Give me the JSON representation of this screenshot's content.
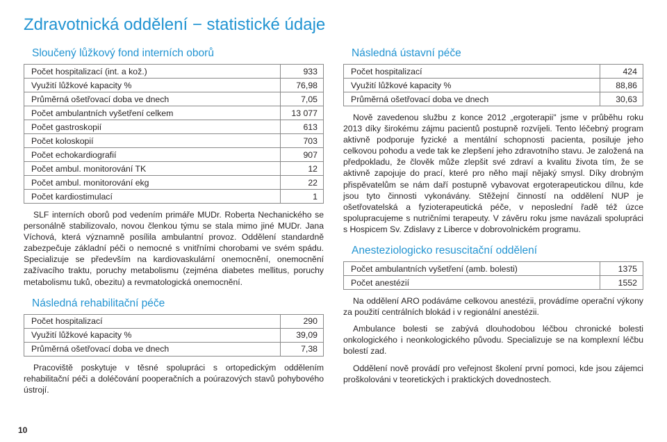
{
  "colors": {
    "accent": "#2294d2",
    "text": "#231f20",
    "border": "#888888",
    "background": "#ffffff"
  },
  "pageTitle": "Zdravotnická oddělení − statistické údaje",
  "pageNumber": "10",
  "left": {
    "section1": {
      "title": "Sloučený lůžkový fond interních oborů",
      "rows": [
        {
          "label": "Počet hospitalizací (int. a kož.)",
          "value": "933"
        },
        {
          "label": "Využití lůžkové kapacity %",
          "value": "76,98"
        },
        {
          "label": "Průměrná ošetřovací doba ve dnech",
          "value": "7,05"
        },
        {
          "label": "Počet ambulantních vyšetření celkem",
          "value": "13 077"
        },
        {
          "label": "Počet gastroskopií",
          "value": "613"
        },
        {
          "label": "Počet koloskopií",
          "value": "703"
        },
        {
          "label": "Počet echokardiografií",
          "value": "907"
        },
        {
          "label": "Počet ambul. monitorování TK",
          "value": "12"
        },
        {
          "label": "Počet ambul. monitorování ekg",
          "value": "22"
        },
        {
          "label": "Počet kardiostimulací",
          "value": "1"
        }
      ],
      "paragraph": "SLF interních oborů pod vedením primáře MUDr. Roberta Nechanického se personálně stabilizovalo, novou členkou týmu se stala mimo jiné MUDr. Jana Víchová, která významně posílila ambulantní provoz. Oddělení standardně zabezpečuje základní péči o nemocné s vnitřními chorobami ve svém spádu. Specializuje se především na kardiovaskulární onemocnění, onemocnění zažívacího traktu, poruchy metabolismu (zejména diabetes mellitus, poruchy metabolismu tuků, obezitu) a revmatologická onemocnění."
    },
    "section2": {
      "title": "Následná rehabilitační péče",
      "rows": [
        {
          "label": "Počet hospitalizací",
          "value": "290"
        },
        {
          "label": "Využití lůžkové kapacity %",
          "value": "39,09"
        },
        {
          "label": "Průměrná ošetřovací doba ve dnech",
          "value": "7,38"
        }
      ],
      "paragraph": "Pracoviště poskytuje v těsné spolupráci s ortopedickým oddělením rehabilitační péči a doléčování pooperačních a poúrazových stavů pohybového ústrojí."
    }
  },
  "right": {
    "section1": {
      "title": "Následná ústavní péče",
      "rows": [
        {
          "label": "Počet hospitalizací",
          "value": "424"
        },
        {
          "label": "Využití lůžkové kapacity %",
          "value": "88,86"
        },
        {
          "label": "Průměrná ošetřovací doba ve dnech",
          "value": "30,63"
        }
      ],
      "paragraph": "Nově zavedenou službu z konce 2012 „ergoterapii\" jsme v průběhu roku 2013 díky širokému zájmu pacientů postupně rozvíjeli. Tento léčebný program aktivně podporuje fyzické a mentální schopnosti pacienta, posiluje jeho celkovou pohodu a vede tak ke zlepšení jeho zdravotního stavu. Je založená na předpokladu, že člověk může zlepšit své zdraví a kvalitu života tím, že se aktivně zapojuje do prací, které pro něho mají nějaký smysl. Díky drobným přispěvatelům se nám daří postupně vybavovat ergoterapeutickou dílnu, kde jsou tyto činnosti vykonávány. Stěžejní činností na oddělení NUP je ošetřovatelská a fyzioterapeutická péče, v neposlední řadě též úzce spolupracujeme s nutričními terapeuty. V závěru roku jsme navázali spolupráci s Hospicem Sv. Zdislavy z Liberce v dobrovolnickém programu."
    },
    "section2": {
      "title": "Anesteziologicko resuscitační oddělení",
      "rows": [
        {
          "label": "Počet ambulantních vyšetření (amb. bolesti)",
          "value": "1375"
        },
        {
          "label": "Počet anestézií",
          "value": "1552"
        }
      ],
      "p1": "Na oddělení ARO podáváme celkovou anestézii, provádíme operační výkony za použití centrálních blokád i v regionální anestézii.",
      "p2": "Ambulance bolesti se zabývá dlouhodobou léčbou chronické bolesti onkologického i neonkologického původu. Specializuje se na komplexní léčbu bolestí zad.",
      "p3": "Oddělení nově provádí pro veřejnost školení první pomoci, kde jsou zájemci proškolováni v teoretických i praktických dovednostech."
    }
  }
}
